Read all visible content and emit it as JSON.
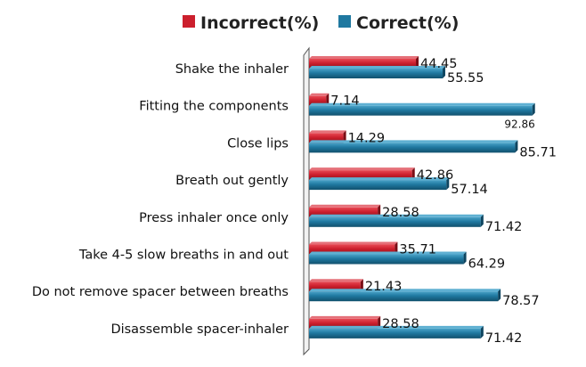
{
  "chart_data": {
    "type": "bar",
    "orientation": "horizontal",
    "categories": [
      "Shake the inhaler",
      "Fitting the components",
      "Close lips ",
      "Breath out gently",
      "Press inhaler once only",
      "Take 4-5 slow breaths in and out",
      "Do not remove spacer between breaths",
      "Disassemble spacer-inhaler"
    ],
    "series": [
      {
        "name": "Incorrect(%)",
        "color": "#cc1f2d",
        "values": [
          44.45,
          7.14,
          14.29,
          42.86,
          28.58,
          35.71,
          21.43,
          28.58
        ],
        "labels": [
          "44.45",
          "7.14",
          "14.29",
          "42.86",
          "28.58",
          "35.71",
          "21.43",
          "28.58"
        ]
      },
      {
        "name": "Correct(%)",
        "color": "#1f78a0",
        "values": [
          55.55,
          92.86,
          85.71,
          57.14,
          71.42,
          64.29,
          78.57,
          71.42
        ],
        "labels": [
          "55.55",
          "92.86",
          "85.71",
          "57.14",
          "71.42",
          "64.29",
          "78.57",
          "71.42"
        ]
      }
    ],
    "xlim": [
      0,
      100
    ],
    "legend_position": "top",
    "grid": false
  }
}
